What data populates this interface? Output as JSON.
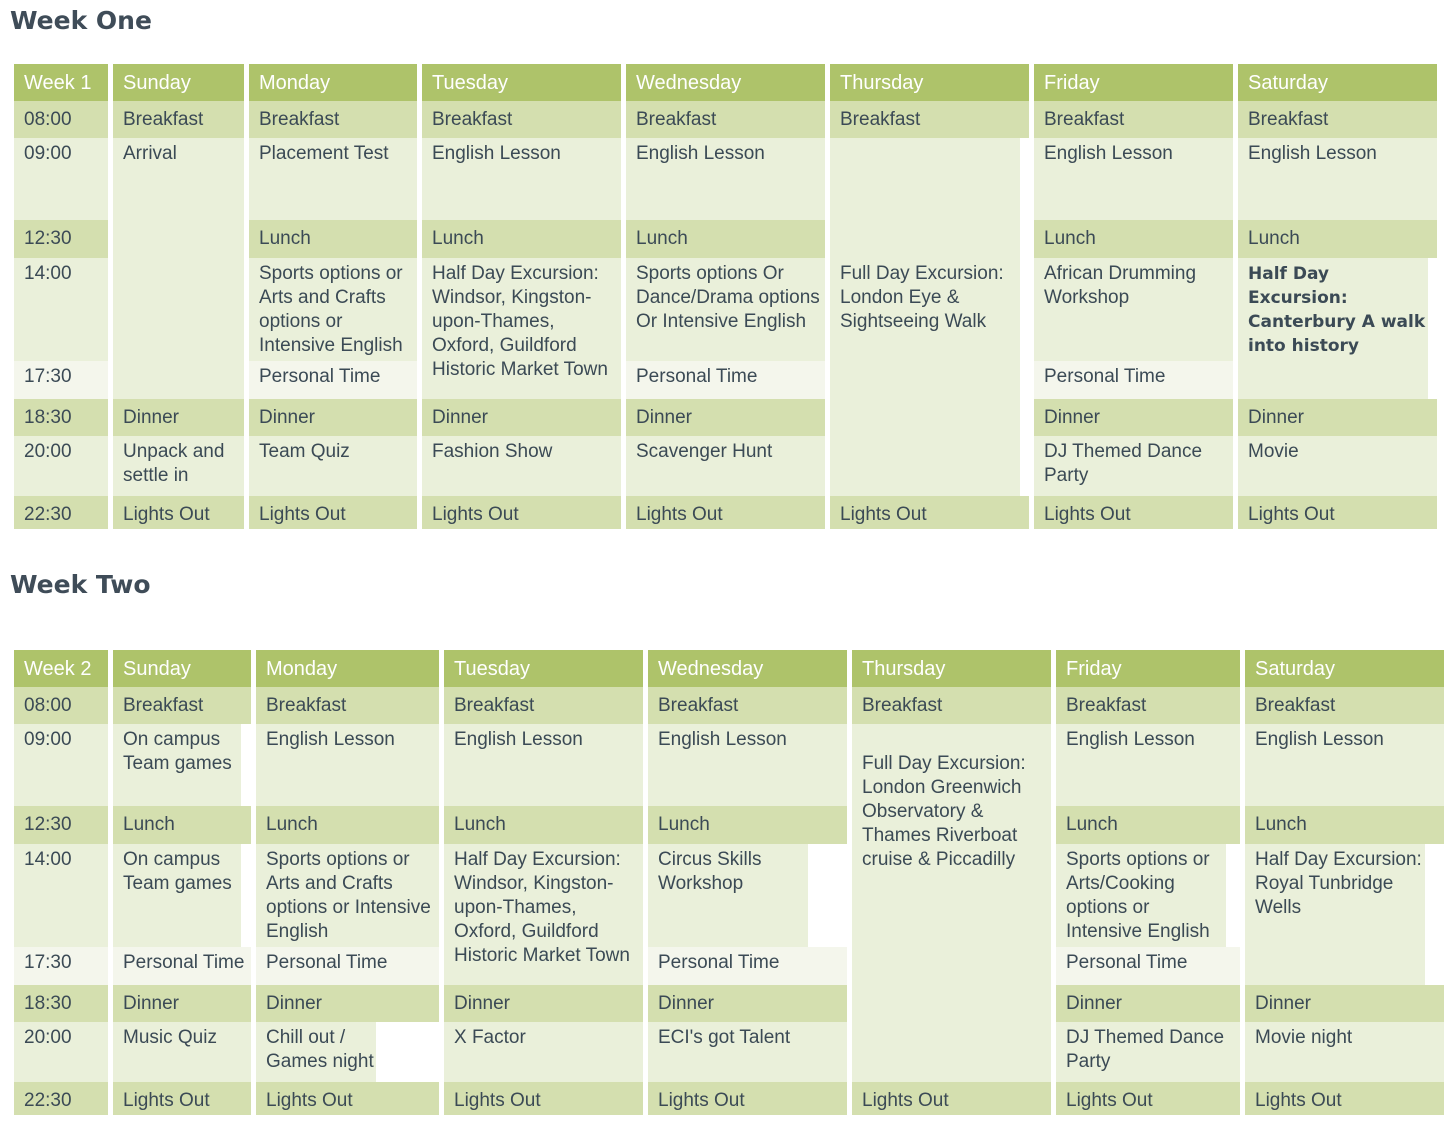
{
  "week1": {
    "title": "Week One",
    "header": [
      "Week 1",
      "Sunday",
      "Monday",
      "Tuesday",
      "Wednesday",
      "Thursday",
      "Friday",
      "Saturday"
    ],
    "times": [
      "08:00",
      "09:00",
      "12:30",
      "14:00",
      "17:30",
      "18:30",
      "20:00",
      "22:30"
    ],
    "sunday": {
      "breakfast": "Breakfast",
      "arrival": "Arrival",
      "dinner": "Dinner",
      "evening": "Unpack and settle in",
      "lights": "Lights Out"
    },
    "monday": {
      "breakfast": "Breakfast",
      "morning": "Placement Test",
      "lunch": "Lunch",
      "afternoon": "Sports options or Arts and Crafts options or Intensive English",
      "personal": "Personal Time",
      "dinner": "Dinner",
      "evening": "Team Quiz",
      "lights": "Lights Out"
    },
    "tuesday": {
      "breakfast": "Breakfast",
      "morning": "English Lesson",
      "lunch": "Lunch",
      "afternoon": "Half Day Excursion: Windsor, Kingston-upon-Thames, Oxford, Guildford Historic Market Town",
      "dinner": "Dinner",
      "evening": "Fashion Show",
      "lights": "Lights Out"
    },
    "wednesday": {
      "breakfast": "Breakfast",
      "morning": "English Lesson",
      "lunch": "Lunch",
      "afternoon": "Sports options Or Dance/Drama options Or Intensive English",
      "personal": "Personal Time",
      "dinner": "Dinner",
      "evening": "Scavenger Hunt",
      "lights": "Lights Out"
    },
    "thursday": {
      "breakfast": "Breakfast",
      "excursion": "Full Day Excursion: London Eye & Sightseeing Walk",
      "lights": "Lights Out"
    },
    "friday": {
      "breakfast": "Breakfast",
      "morning": "English Lesson",
      "lunch": "Lunch",
      "afternoon": "African Drumming Workshop",
      "personal": "Personal Time",
      "dinner": "Dinner",
      "evening": "DJ Themed Dance Party",
      "lights": "Lights Out"
    },
    "saturday": {
      "breakfast": "Breakfast",
      "morning": "English Lesson",
      "lunch": "Lunch",
      "afternoon": "Half Day Excursion: Canterbury A walk into history",
      "dinner": "Dinner",
      "evening": "Movie",
      "lights": "Lights Out"
    }
  },
  "week2": {
    "title": "Week Two",
    "header": [
      "Week 2",
      "Sunday",
      "Monday",
      "Tuesday",
      "Wednesday",
      "Thursday",
      "Friday",
      "Saturday"
    ],
    "times": [
      "08:00",
      "09:00",
      "12:30",
      "14:00",
      "17:30",
      "18:30",
      "20:00",
      "22:30"
    ],
    "sunday": {
      "breakfast": "Breakfast",
      "morning": "On campus Team games",
      "lunch": "Lunch",
      "afternoon": "On campus Team games",
      "personal": "Personal Time",
      "dinner": "Dinner",
      "evening": "Music Quiz",
      "lights": "Lights Out"
    },
    "monday": {
      "breakfast": "Breakfast",
      "morning": "English Lesson",
      "lunch": "Lunch",
      "afternoon": "Sports options or Arts and Crafts options or Intensive English",
      "personal": "Personal Time",
      "dinner": "Dinner",
      "evening": "Chill out / Games night",
      "lights": "Lights Out"
    },
    "tuesday": {
      "breakfast": "Breakfast",
      "morning": "English Lesson",
      "lunch": "Lunch",
      "afternoon": "Half Day Excursion: Windsor, Kingston-upon-Thames, Oxford, Guildford Historic Market Town",
      "dinner": "Dinner",
      "evening": "X Factor",
      "lights": "Lights Out"
    },
    "wednesday": {
      "breakfast": "Breakfast",
      "morning": "English Lesson",
      "lunch": "Lunch",
      "afternoon": "Circus Skills Workshop",
      "personal": "Personal Time",
      "dinner": "Dinner",
      "evening": "ECI's got Talent",
      "lights": "Lights Out"
    },
    "thursday": {
      "breakfast": "Breakfast",
      "excursion": "Full Day Excursion: London Greenwich Observatory & Thames Riverboat cruise & Piccadilly",
      "lights": "Lights Out"
    },
    "friday": {
      "breakfast": "Breakfast",
      "morning": "English Lesson",
      "lunch": "Lunch",
      "afternoon": "Sports options or Arts/Cooking options or Intensive English",
      "personal": "Personal Time",
      "dinner": "Dinner",
      "evening": "DJ Themed Dance Party",
      "lights": "Lights Out"
    },
    "saturday": {
      "breakfast": "Breakfast",
      "morning": "English Lesson",
      "lunch": "Lunch",
      "afternoon": "Half Day Excursion: Royal Tunbridge Wells",
      "dinner": "Dinner",
      "evening": "Movie night",
      "lights": "Lights Out"
    }
  }
}
